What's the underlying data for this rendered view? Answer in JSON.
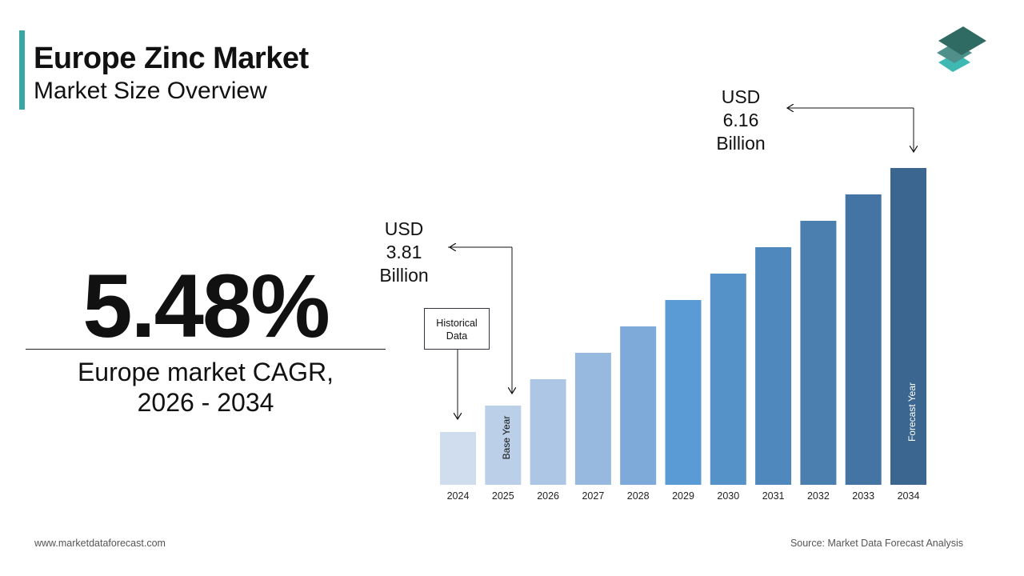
{
  "header": {
    "title": "Europe Zinc Market",
    "subtitle": "Market Size Overview"
  },
  "cagr": {
    "value": "5.48%",
    "label_line1": "Europe market CAGR,",
    "label_line2": "2026 - 2034"
  },
  "callouts": {
    "start": {
      "line1": "USD",
      "line2": "3.81",
      "line3": "Billion"
    },
    "end": {
      "line1": "USD",
      "line2": "6.16",
      "line3": "Billion"
    },
    "historical": "Historical Data",
    "base_year": "Base Year",
    "forecast_year": "Forecast Year"
  },
  "footer": {
    "website": "www.marketdataforecast.com",
    "source": "Source: Market Data Forecast Analysis"
  },
  "chart_data": {
    "type": "bar",
    "categories": [
      "2024",
      "2025",
      "2026",
      "2027",
      "2028",
      "2029",
      "2030",
      "2031",
      "2032",
      "2033",
      "2034"
    ],
    "values": [
      null,
      3.81,
      null,
      null,
      null,
      null,
      null,
      null,
      null,
      null,
      6.16
    ],
    "unit": "USD Billion",
    "colors": [
      "#d0ddef",
      "#bccfe8",
      "#adc6e5",
      "#97b9df",
      "#7eaad9",
      "#5b9bd5",
      "#5592c8",
      "#4f88bd",
      "#4a7fb0",
      "#4374a3",
      "#3a6690"
    ],
    "grid": false,
    "legend": "none"
  },
  "logo": {
    "colors": [
      "#2f6b62",
      "#4f918a",
      "#3fb8b3"
    ]
  }
}
